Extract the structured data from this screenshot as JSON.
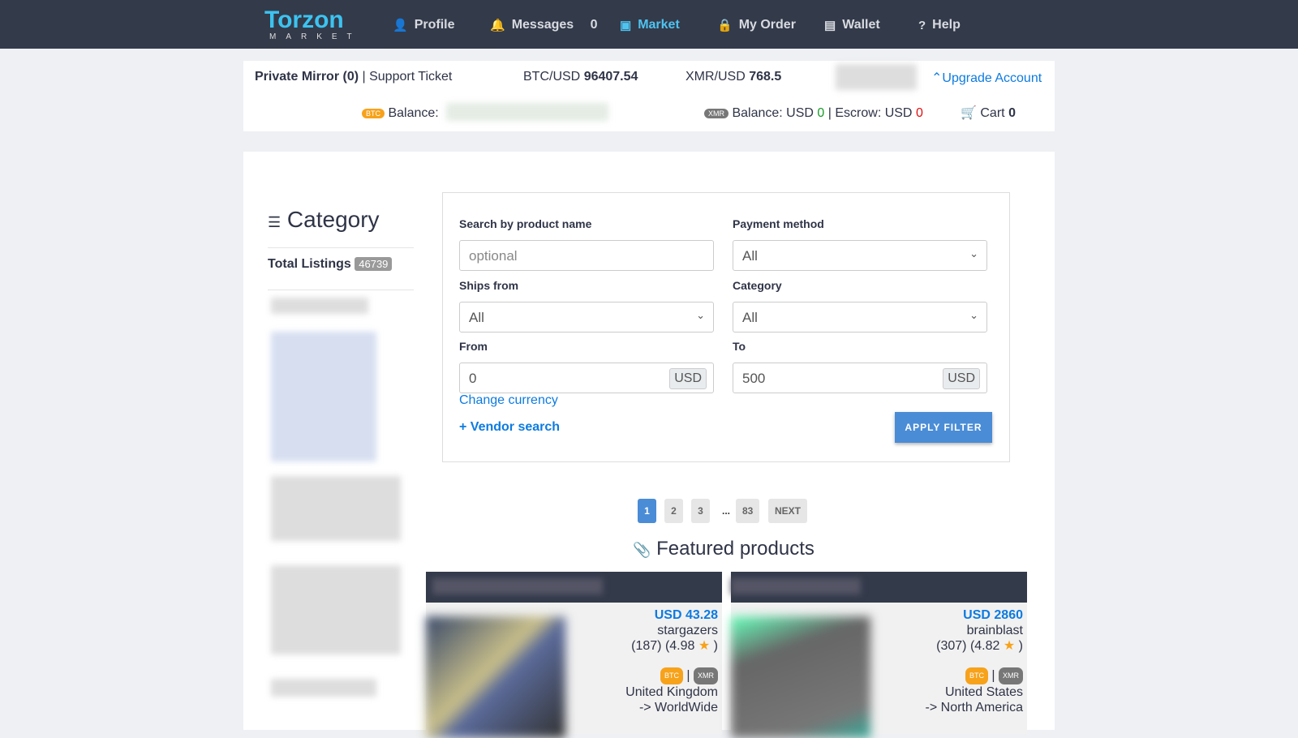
{
  "nav": {
    "logo": "Torzon",
    "logo_sub": "MARKET",
    "items": [
      {
        "label": "Profile",
        "icon": "user-icon"
      },
      {
        "label": "Messages",
        "count": "0",
        "icon": "bell-icon"
      },
      {
        "label": "Market",
        "icon": "store-icon",
        "active": true
      },
      {
        "label": "My Order",
        "icon": "bag-icon"
      },
      {
        "label": "Wallet",
        "icon": "wallet-icon"
      },
      {
        "label": "Help",
        "icon": "question-icon"
      }
    ]
  },
  "top": {
    "private_mirror": "Private Mirror (0)",
    "support": "Support Ticket",
    "btc_label": "BTC/USD",
    "btc_rate": "96407.54",
    "xmr_label": "XMR/USD",
    "xmr_rate": "768.5",
    "upgrade": "Upgrade Account",
    "btc_badge": "BTC",
    "btc_balance": "Balance:",
    "xmr_badge": "XMR",
    "xmr_balance": "Balance: USD",
    "xmr_balance_value": "0",
    "escrow": "Escrow: USD",
    "escrow_value": "0",
    "cart": "Cart",
    "cart_count": "0"
  },
  "sidebar": {
    "title": "Category",
    "total_label": "Total Listings",
    "total": "46739"
  },
  "filter": {
    "search_label": "Search by product name",
    "search_placeholder": "optional",
    "payment_label": "Payment method",
    "payment": "All",
    "ships_label": "Ships from",
    "ships": "All",
    "category_label": "Category",
    "category": "All",
    "from_label": "From",
    "from": "0",
    "to_label": "To",
    "to": "500",
    "currency": "USD",
    "change_currency": "Change currency",
    "vendor_search": "+ Vendor search",
    "apply": "APPLY FILTER"
  },
  "pagination": [
    "1",
    "2",
    "3",
    "...",
    "83",
    "NEXT"
  ],
  "featured": {
    "title": "Featured products",
    "products": [
      {
        "price": "USD 43.28",
        "vendor": "stargazers",
        "rating": "(187) (4.98",
        "from": "United Kingdom",
        "to": "-> WorldWide"
      },
      {
        "price": "USD 2860",
        "vendor": "brainblast",
        "rating": "(307) (4.82",
        "from": "United States",
        "to": "-> North America"
      }
    ]
  },
  "colors": {
    "nav": "#333a4a",
    "accent": "#0d7be0",
    "btc": "#f7a21b"
  }
}
